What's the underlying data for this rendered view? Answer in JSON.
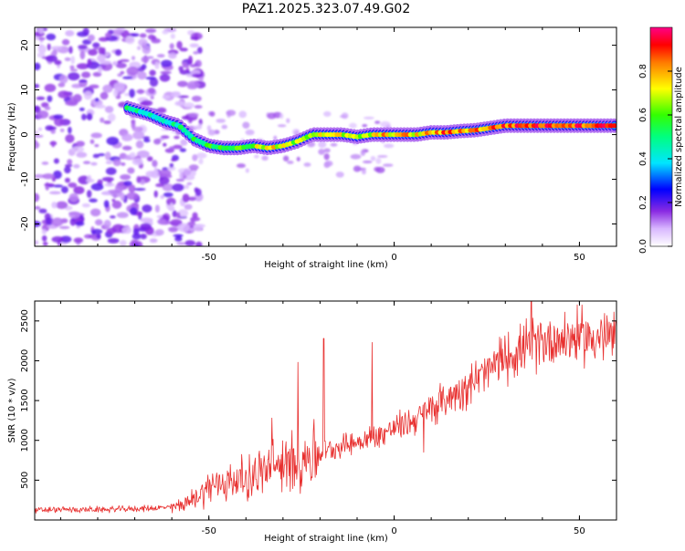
{
  "title": "PAZ1.2025.323.07.49.G02",
  "chart_data": [
    {
      "type": "heatmap",
      "name": "spectrogram",
      "xlabel": "Height of straight line (km)",
      "ylabel": "Frequency (Hz)",
      "xlim": [
        -97,
        60
      ],
      "ylim": [
        -25,
        24
      ],
      "xticks": [
        -50,
        0,
        50
      ],
      "xtick_labels": [
        "-50",
        "0",
        "50"
      ],
      "yticks": [
        -20,
        -10,
        0,
        10,
        20
      ],
      "ytick_labels": [
        "-20",
        "-10",
        "0",
        "10",
        "20"
      ],
      "colorbar": {
        "label": "Normalized spectral amplitude",
        "range": [
          0,
          1
        ],
        "ticks": [
          0.0,
          0.2,
          0.4,
          0.6,
          0.8
        ],
        "tick_labels": [
          "0.0",
          "0.2",
          "0.4",
          "0.6",
          "0.8"
        ]
      },
      "ridge": {
        "x": [
          -72,
          -66,
          -62,
          -58,
          -54,
          -50,
          -46,
          -42,
          -38,
          -34,
          -30,
          -26,
          -22,
          -18,
          -14,
          -10,
          -6,
          -2,
          2,
          6,
          10,
          14,
          18,
          22,
          26,
          30,
          40,
          50,
          60
        ],
        "frequency_hz": [
          6,
          4.5,
          3,
          2,
          -1,
          -2.5,
          -3,
          -3,
          -2.5,
          -3,
          -2.5,
          -1.5,
          0,
          0,
          0,
          -0.5,
          0,
          0,
          0,
          0,
          0.5,
          0.5,
          0.8,
          1,
          1.5,
          2,
          2,
          2,
          2
        ],
        "amplitude": [
          0.5,
          0.45,
          0.45,
          0.5,
          0.55,
          0.55,
          0.6,
          0.6,
          0.65,
          0.75,
          0.7,
          0.65,
          0.75,
          0.8,
          0.7,
          0.65,
          0.7,
          0.8,
          0.8,
          0.75,
          0.8,
          0.85,
          0.85,
          0.85,
          0.85,
          0.9,
          0.95,
          0.95,
          0.95
        ]
      }
    },
    {
      "type": "line",
      "name": "snr",
      "xlabel": "Height of straight line (km)",
      "ylabel": "SNR (10 * v/v)",
      "xlim": [
        -97,
        60
      ],
      "ylim": [
        0,
        2750
      ],
      "xticks": [
        -50,
        0,
        50
      ],
      "xtick_labels": [
        "-50",
        "0",
        "50"
      ],
      "yticks": [
        500,
        1000,
        1500,
        2000,
        2500
      ],
      "ytick_labels": [
        "500",
        "1000",
        "1500",
        "2000",
        "2500"
      ],
      "series": [
        {
          "name": "SNR",
          "color": "#e8302f",
          "x": [
            -97,
            -90,
            -80,
            -70,
            -60,
            -55,
            -50,
            -45,
            -40,
            -35,
            -30,
            -25,
            -20,
            -15,
            -10,
            -5,
            0,
            5,
            10,
            15,
            20,
            25,
            30,
            35,
            40,
            45,
            50,
            55,
            60
          ],
          "y": [
            120,
            130,
            130,
            140,
            160,
            230,
            420,
            480,
            520,
            620,
            700,
            780,
            840,
            930,
            980,
            1050,
            1150,
            1250,
            1400,
            1550,
            1700,
            1850,
            2050,
            2150,
            2250,
            2280,
            2300,
            2300,
            2280
          ],
          "peaks": [
            {
              "x": -33,
              "y": 1280
            },
            {
              "x": -29,
              "y": 420
            },
            {
              "x": -26,
              "y": 1980
            },
            {
              "x": -19,
              "y": 2280
            },
            {
              "x": -6,
              "y": 2230
            },
            {
              "x": 8,
              "y": 850
            },
            {
              "x": 37,
              "y": 2750
            }
          ]
        }
      ]
    }
  ]
}
